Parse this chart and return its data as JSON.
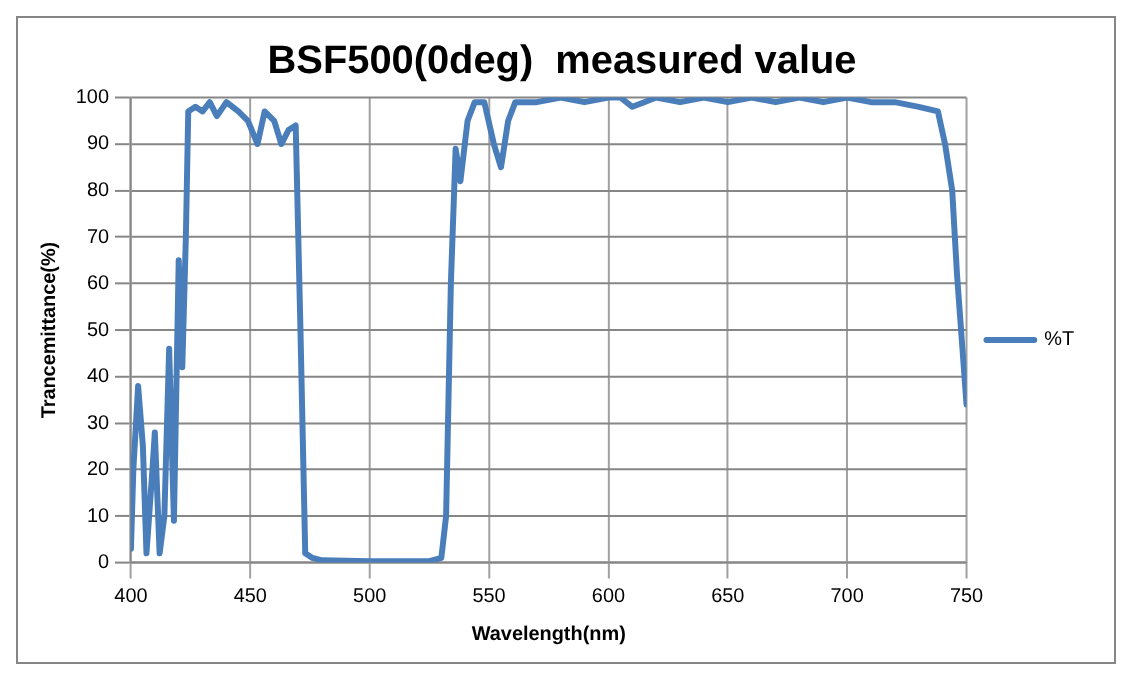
{
  "chart_data": {
    "type": "line",
    "title": "BSF500(0deg)  measured value",
    "xlabel": "Wavelength(nm)",
    "ylabel": "Trancemittance(%)",
    "x": [
      400,
      401,
      403,
      405,
      406.5,
      409,
      410,
      412,
      414,
      416,
      418,
      420,
      421.5,
      423,
      424,
      427,
      430,
      433,
      436,
      440,
      445,
      449,
      453,
      456,
      460,
      463,
      466,
      469,
      471,
      473,
      476,
      480,
      500,
      525,
      530,
      532,
      534,
      536,
      538,
      541,
      544,
      548,
      552,
      555,
      558,
      561,
      570,
      580,
      590,
      600,
      605,
      610,
      615,
      620,
      630,
      640,
      650,
      660,
      670,
      680,
      690,
      700,
      710,
      720,
      730,
      738,
      741,
      744,
      746,
      748,
      750
    ],
    "series": [
      {
        "name": "%T",
        "color": "#4a7ebb",
        "values": [
          3,
          20,
          38,
          25,
          2,
          20,
          28,
          2,
          10,
          46,
          9,
          65,
          42,
          70,
          97,
          98,
          97,
          99,
          96,
          99,
          97,
          95,
          90,
          97,
          95,
          90,
          93,
          94,
          50,
          2,
          1,
          0.5,
          0.3,
          0.3,
          1,
          10,
          60,
          89,
          82,
          95,
          99,
          99,
          90,
          85,
          95,
          99,
          99,
          100,
          99,
          100,
          100,
          98,
          99,
          100,
          99,
          100,
          99,
          100,
          99,
          100,
          99,
          100,
          99,
          99,
          98,
          97,
          90,
          80,
          62,
          48,
          34
        ]
      }
    ],
    "xlim": [
      400,
      750
    ],
    "xticks": [
      400,
      450,
      500,
      550,
      600,
      650,
      700,
      750
    ],
    "ylim": [
      0,
      100
    ],
    "yticks": [
      0,
      10,
      20,
      30,
      40,
      50,
      60,
      70,
      80,
      90,
      100
    ],
    "grid": true,
    "legend": "right",
    "marker": "none",
    "line_style": "solid"
  }
}
